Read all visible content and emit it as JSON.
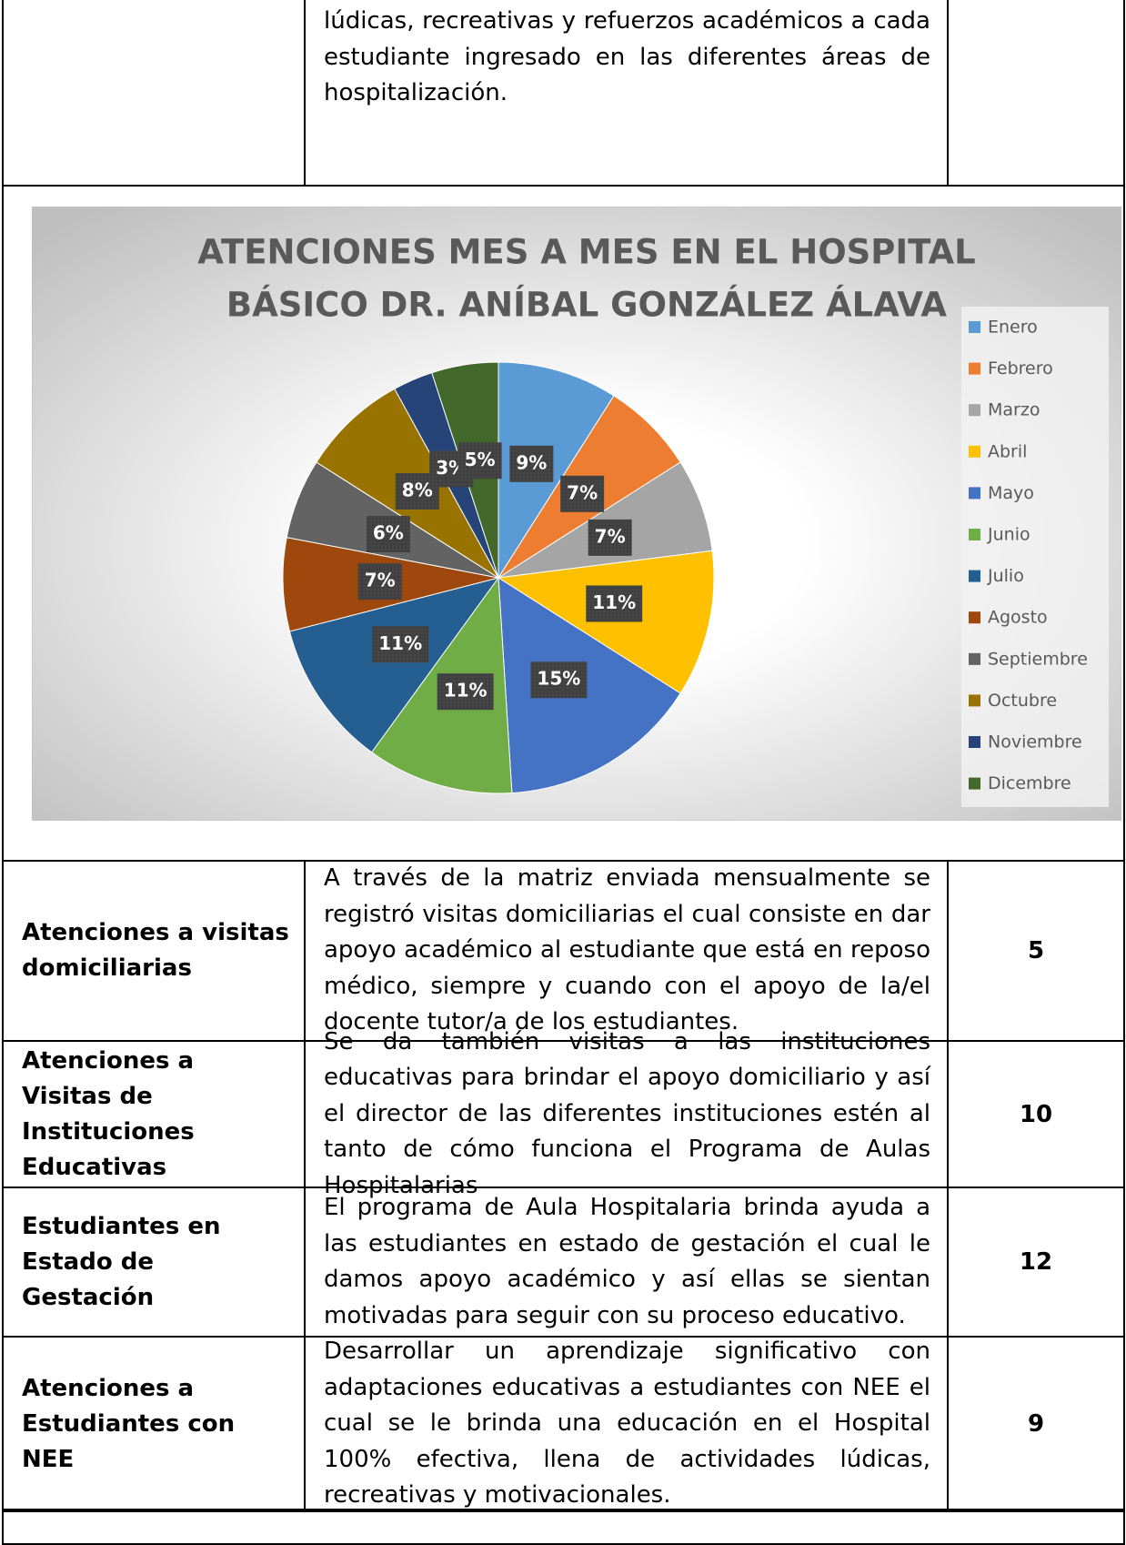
{
  "intro_text": "lúdicas, recreativas y refuerzos académicos a cada estudiante ingresado en las diferentes áreas de hospitalización.",
  "chart_data": {
    "type": "pie",
    "title_lines": [
      "ATENCIONES MES A MES EN EL HOSPITAL",
      "BÁSICO DR. ANÍBAL GONZÁLEZ ÁLAVA"
    ],
    "categories": [
      "Enero",
      "Febrero",
      "Marzo",
      "Abril",
      "Mayo",
      "Junio",
      "Julio",
      "Agosto",
      "Septiembre",
      "Octubre",
      "Noviembre",
      "Dicembre"
    ],
    "values": [
      9,
      7,
      7,
      11,
      15,
      11,
      11,
      7,
      6,
      8,
      3,
      5
    ],
    "value_labels": [
      "9%",
      "7%",
      "7%",
      "11%",
      "15%",
      "11%",
      "11%",
      "7%",
      "6%",
      "8%",
      "3%",
      "5%"
    ],
    "colors": [
      "#5b9bd5",
      "#ed7d31",
      "#a5a5a5",
      "#ffc000",
      "#4472c4",
      "#70ad47",
      "#255e91",
      "#9e480e",
      "#636363",
      "#997300",
      "#264478",
      "#43682b"
    ],
    "legend": "right"
  },
  "table": {
    "rows": [
      [
        "Atenciones a visitas domiciliarias",
        "A través de la matriz enviada mensualmente se registró visitas domiciliarias el cual consiste en dar apoyo académico al estudiante que está en reposo médico, siempre y cuando con el apoyo de la/el docente tutor/a de los estudiantes.",
        5
      ],
      [
        "Atenciones a Visitas de Instituciones Educativas",
        "Se da también visitas a las instituciones educativas para brindar el apoyo domiciliario y así el director de las diferentes instituciones estén al tanto de cómo funciona el Programa de Aulas Hospitalarias",
        10
      ],
      [
        "Estudiantes en Estado de Gestación",
        "El programa de Aula Hospitalaria brinda ayuda a las estudiantes en estado de gestación el cual le damos apoyo académico y así ellas se sientan motivadas para seguir con su proceso educativo.",
        12
      ],
      [
        "Atenciones a Estudiantes con NEE",
        "Desarrollar un aprendizaje significativo con adaptaciones educativas a estudiantes con NEE el cual se le brinda una educación en el Hospital 100% efectiva, llena de actividades lúdicas, recreativas y motivacionales.",
        9
      ]
    ]
  }
}
